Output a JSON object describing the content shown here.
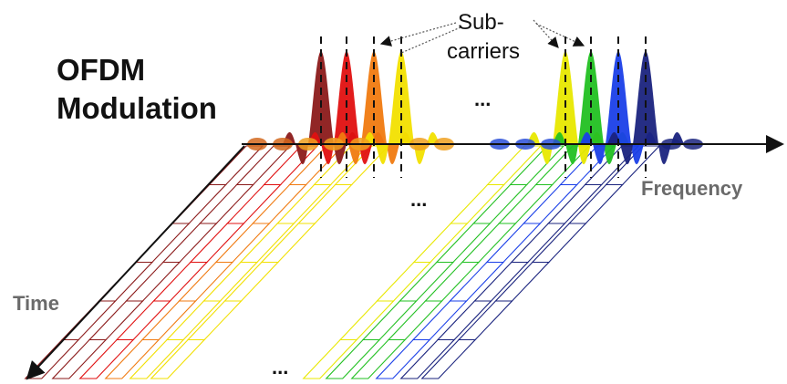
{
  "title_line1": "OFDM",
  "title_line2": "Modulation",
  "subcarriers_line1": "Sub-",
  "subcarriers_line2": "carriers",
  "frequency_label": "Frequency",
  "time_label": "Time",
  "ellipsis": "...",
  "colors": {
    "left_group": [
      "#8b1a1a",
      "#e01010",
      "#f07a10",
      "#f2e000"
    ],
    "right_group": [
      "#e8e800",
      "#22c022",
      "#1a3fe8",
      "#1a237e"
    ]
  }
}
